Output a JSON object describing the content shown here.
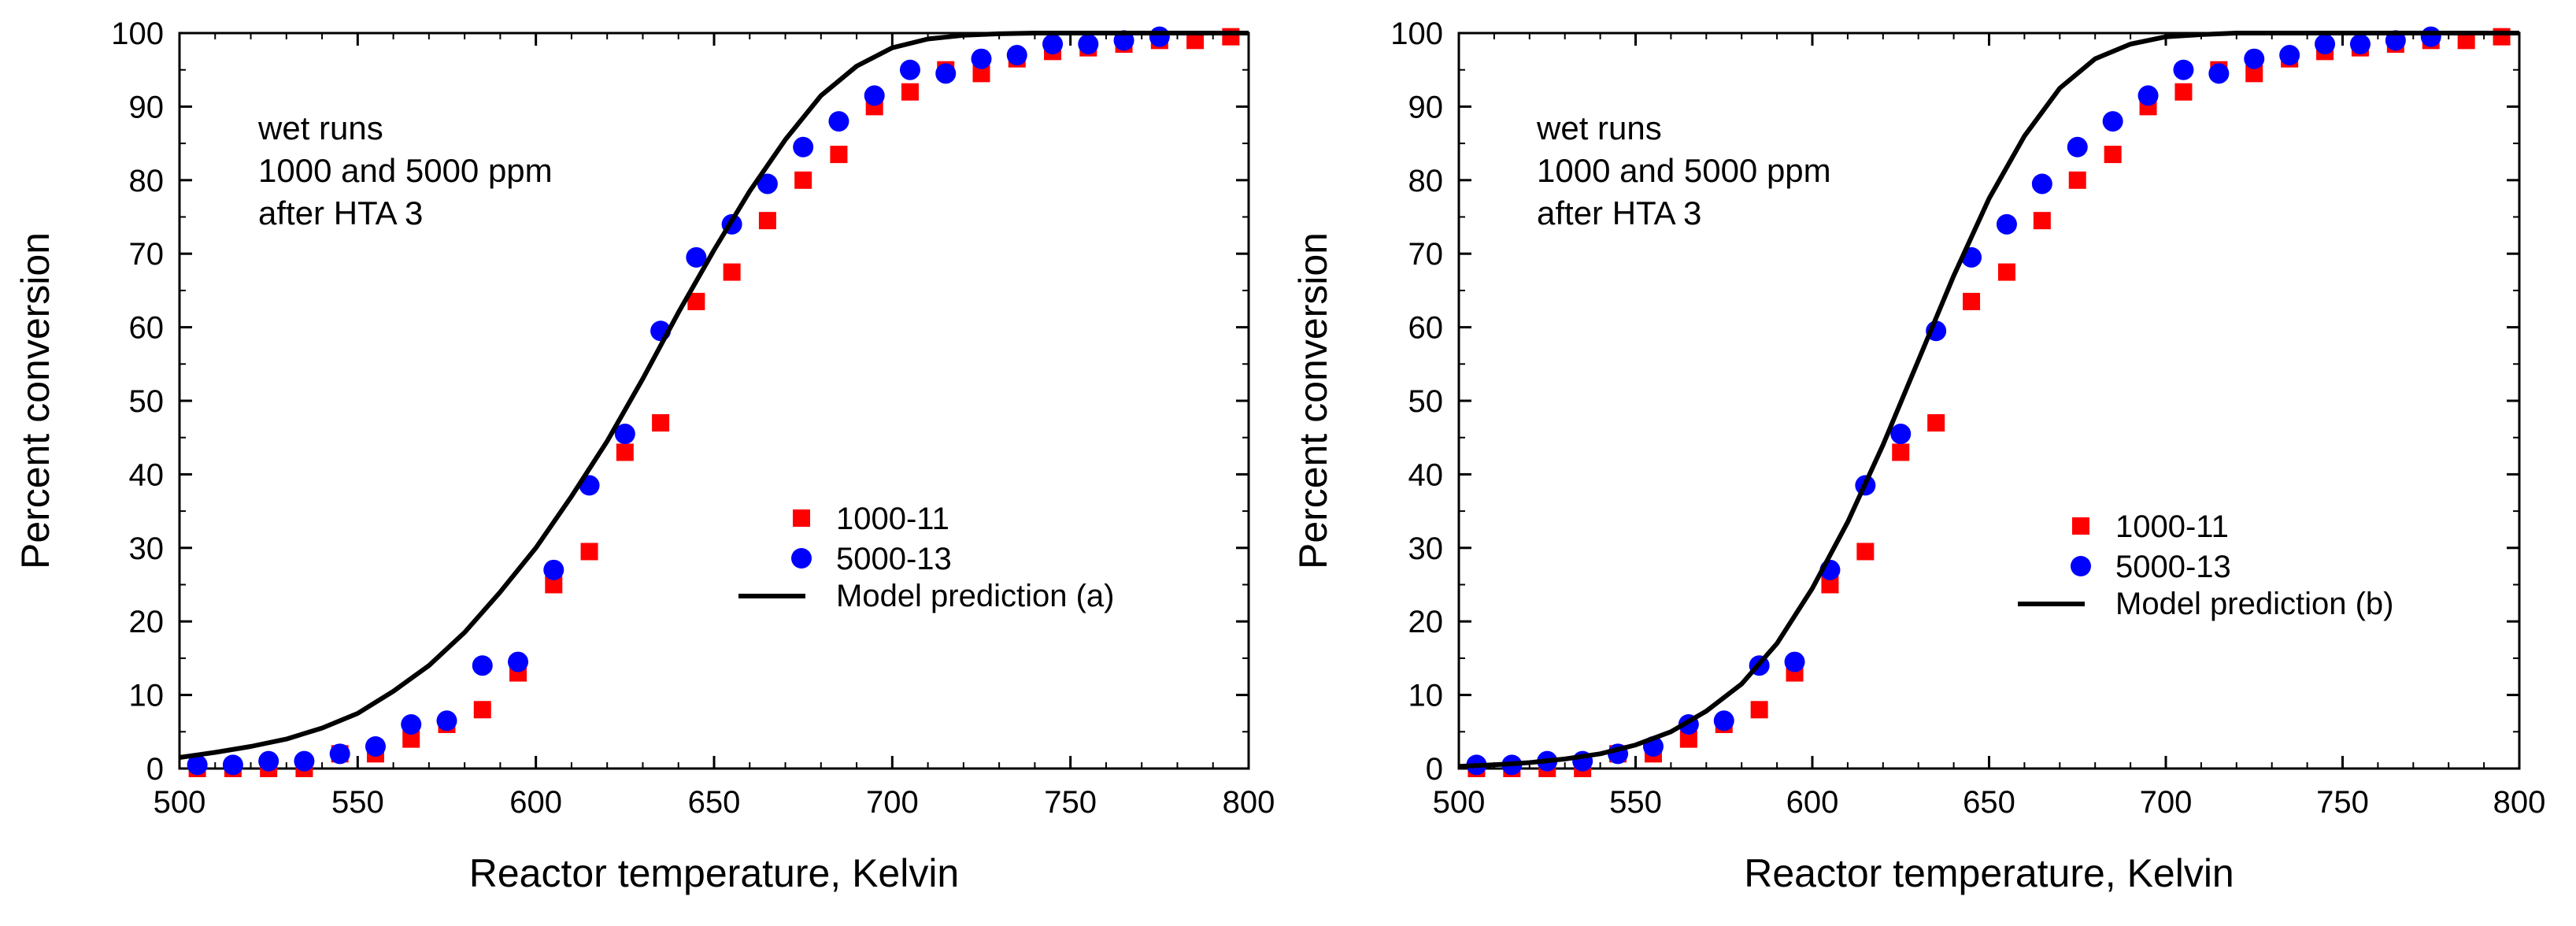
{
  "chart_data": [
    {
      "type": "scatter",
      "panel": "a",
      "xlabel": "Reactor temperature, Kelvin",
      "ylabel": "Percent conversion",
      "xlim": [
        500,
        800
      ],
      "ylim": [
        0,
        100
      ],
      "xticks": [
        "500",
        "550",
        "600",
        "650",
        "700",
        "750",
        "800"
      ],
      "yticks": [
        "0",
        "10",
        "20",
        "30",
        "40",
        "50",
        "60",
        "70",
        "80",
        "90",
        "100"
      ],
      "annotation": [
        "wet runs",
        "1000 and 5000 ppm",
        "after HTA 3"
      ],
      "legend_position": "center-right",
      "series": [
        {
          "name": "1000-11",
          "marker": "square",
          "color": "#ff0000",
          "x": [
            505,
            515,
            525,
            535,
            545,
            555,
            565,
            575,
            585,
            595,
            605,
            615,
            625,
            635,
            645,
            655,
            665,
            675,
            685,
            695,
            705,
            715,
            725,
            735,
            745,
            755,
            765,
            775,
            785,
            795
          ],
          "y": [
            0,
            0,
            0,
            0,
            2,
            2,
            4,
            6,
            8,
            13,
            25,
            29.5,
            43,
            47,
            63.5,
            67.5,
            74.5,
            80,
            83.5,
            90,
            92,
            95,
            94.5,
            96.5,
            97.5,
            98,
            98.5,
            99,
            99,
            99.5
          ]
        },
        {
          "name": "5000-13",
          "marker": "circle",
          "color": "#0000ff",
          "x": [
            505,
            515,
            525,
            535,
            545,
            555,
            565,
            575,
            585,
            595,
            605,
            615,
            625,
            635,
            645,
            655,
            665,
            675,
            685,
            695,
            705,
            715,
            725,
            735,
            745,
            755,
            765,
            775
          ],
          "y": [
            0.5,
            0.5,
            1,
            1,
            2,
            3,
            6,
            6.5,
            14,
            14.5,
            27,
            38.5,
            45.5,
            59.5,
            69.5,
            74,
            79.5,
            84.5,
            88,
            91.5,
            95,
            94.5,
            96.5,
            97,
            98.5,
            98.5,
            99,
            99.5
          ]
        },
        {
          "name": "Model prediction (a)",
          "marker": "line",
          "color": "#000000",
          "x": [
            500,
            510,
            520,
            530,
            540,
            550,
            560,
            570,
            580,
            590,
            600,
            610,
            620,
            630,
            640,
            650,
            660,
            670,
            680,
            690,
            700,
            710,
            720,
            730,
            740,
            750,
            760,
            770,
            780,
            790,
            800
          ],
          "y": [
            1.5,
            2.2,
            3,
            4,
            5.5,
            7.5,
            10.5,
            14,
            18.5,
            24,
            30,
            37,
            44.5,
            53,
            62,
            70.5,
            78.5,
            85.5,
            91.5,
            95.5,
            98,
            99.2,
            99.7,
            99.9,
            100,
            100,
            100,
            100,
            100,
            100,
            100
          ]
        }
      ]
    },
    {
      "type": "scatter",
      "panel": "b",
      "xlabel": "Reactor temperature, Kelvin",
      "ylabel": "Percent conversion",
      "xlim": [
        500,
        800
      ],
      "ylim": [
        0,
        100
      ],
      "xticks": [
        "500",
        "550",
        "600",
        "650",
        "700",
        "750",
        "800"
      ],
      "yticks": [
        "0",
        "10",
        "20",
        "30",
        "40",
        "50",
        "60",
        "70",
        "80",
        "90",
        "100"
      ],
      "annotation": [
        "wet runs",
        "1000 and 5000 ppm",
        "after HTA 3"
      ],
      "legend_position": "center-right",
      "series": [
        {
          "name": "1000-11",
          "marker": "square",
          "color": "#ff0000",
          "x": [
            505,
            515,
            525,
            535,
            545,
            555,
            565,
            575,
            585,
            595,
            605,
            615,
            625,
            635,
            645,
            655,
            665,
            675,
            685,
            695,
            705,
            715,
            725,
            735,
            745,
            755,
            765,
            775,
            785,
            795
          ],
          "y": [
            0,
            0,
            0,
            0,
            2,
            2,
            4,
            6,
            8,
            13,
            25,
            29.5,
            43,
            47,
            63.5,
            67.5,
            74.5,
            80,
            83.5,
            90,
            92,
            95,
            94.5,
            96.5,
            97.5,
            98,
            98.5,
            99,
            99,
            99.5
          ]
        },
        {
          "name": "5000-13",
          "marker": "circle",
          "color": "#0000ff",
          "x": [
            505,
            515,
            525,
            535,
            545,
            555,
            565,
            575,
            585,
            595,
            605,
            615,
            625,
            635,
            645,
            655,
            665,
            675,
            685,
            695,
            705,
            715,
            725,
            735,
            745,
            755,
            765,
            775
          ],
          "y": [
            0.5,
            0.5,
            1,
            1,
            2,
            3,
            6,
            6.5,
            14,
            14.5,
            27,
            38.5,
            45.5,
            59.5,
            69.5,
            74,
            79.5,
            84.5,
            88,
            91.5,
            95,
            94.5,
            96.5,
            97,
            98.5,
            98.5,
            99,
            99.5
          ]
        },
        {
          "name": "Model prediction (b)",
          "marker": "line",
          "color": "#000000",
          "x": [
            500,
            510,
            520,
            530,
            540,
            550,
            560,
            570,
            580,
            590,
            600,
            610,
            620,
            630,
            640,
            650,
            660,
            670,
            680,
            690,
            700,
            710,
            720,
            730,
            740,
            750,
            760,
            770,
            780,
            790,
            800
          ],
          "y": [
            0.3,
            0.5,
            0.8,
            1.3,
            2,
            3.2,
            5,
            7.8,
            11.5,
            17,
            24.5,
            33.5,
            44,
            55.5,
            67,
            77.5,
            86,
            92.5,
            96.5,
            98.5,
            99.5,
            99.8,
            100,
            100,
            100,
            100,
            100,
            100,
            100,
            100,
            100
          ]
        }
      ]
    }
  ]
}
